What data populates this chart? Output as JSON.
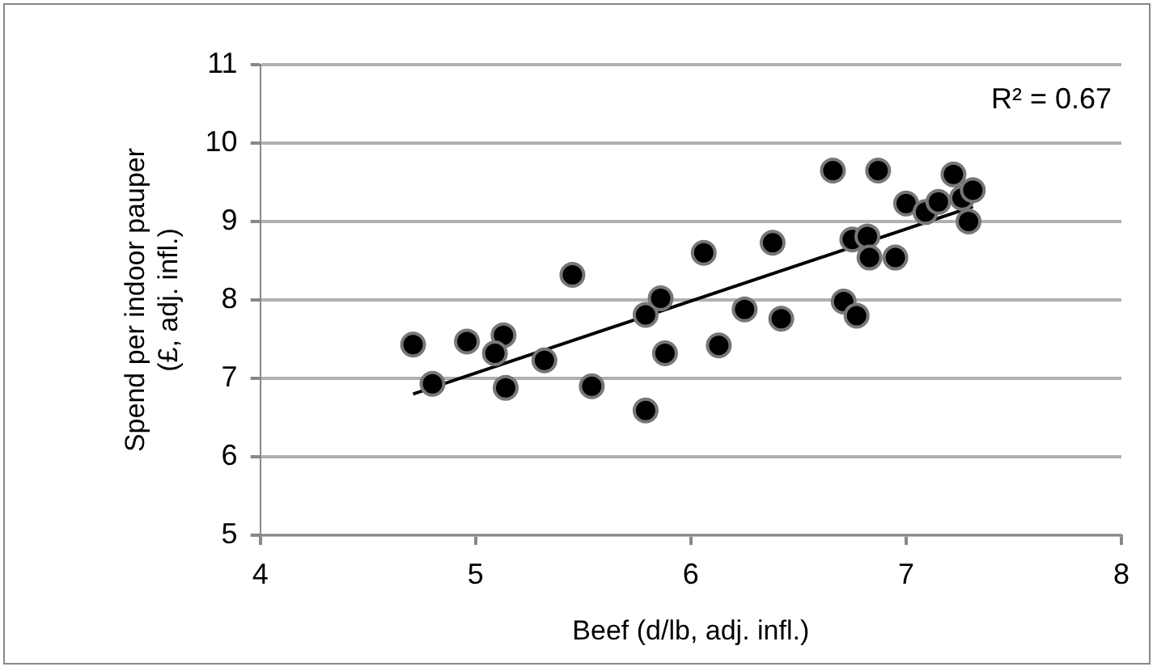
{
  "chart_data": {
    "type": "scatter",
    "xlabel": "Beef (d/lb, adj. infl.)",
    "ylabel": "Spend per indoor pauper\n(£, adj. infl.)",
    "annotations": [
      "R² = 0.67"
    ],
    "series": [
      {
        "type": "scatter",
        "marker": "circle",
        "color": "#000000",
        "x": [
          4.71,
          4.8,
          4.96,
          5.13,
          5.09,
          5.14,
          5.32,
          5.45,
          5.54,
          5.79,
          5.86,
          5.79,
          5.88,
          6.06,
          6.13,
          6.25,
          6.38,
          6.42,
          6.66,
          6.87,
          6.71,
          6.77,
          6.75,
          6.82,
          6.83,
          6.95,
          7.0,
          7.09,
          7.15,
          7.22,
          7.26,
          7.31,
          7.29
        ],
        "values": [
          7.43,
          6.93,
          7.47,
          7.55,
          7.32,
          6.88,
          7.23,
          8.32,
          6.9,
          7.81,
          8.02,
          6.59,
          7.32,
          8.6,
          7.42,
          7.88,
          8.73,
          7.76,
          9.65,
          9.65,
          7.98,
          7.8,
          8.77,
          8.81,
          8.54,
          8.54,
          9.23,
          9.12,
          9.25,
          9.6,
          9.3,
          9.4,
          9.0
        ]
      },
      {
        "type": "line",
        "marker": "none",
        "color": "#000000",
        "x": [
          4.71,
          7.31
        ],
        "values": [
          6.8,
          9.19
        ]
      }
    ],
    "xlim": [
      4,
      8
    ],
    "xticks": [
      4,
      5,
      6,
      7,
      8
    ],
    "ylim": [
      5,
      11
    ],
    "yticks": [
      5,
      6,
      7,
      8,
      9,
      10,
      11
    ],
    "grid": "y",
    "legend": false
  }
}
